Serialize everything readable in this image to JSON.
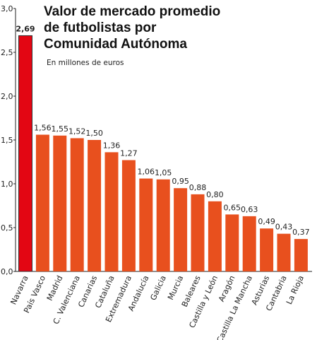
{
  "chart_data": {
    "type": "bar",
    "title": [
      "Valor de mercado promedio",
      "de futbolistas por",
      "Comunidad Autónoma"
    ],
    "subtitle": "En millones de euros",
    "categories": [
      "Navarra",
      "País Vasco",
      "Madrid",
      "C. Valenciana",
      "Canarias",
      "Cataluña",
      "Extremadura",
      "Andalucía",
      "Galicia",
      "Murcia",
      "Baleares",
      "Castilla y León",
      "Aragón",
      "Castilla La Mancha",
      "Asturias",
      "Cantabria",
      "La Rioja"
    ],
    "values": [
      2.69,
      1.56,
      1.55,
      1.52,
      1.5,
      1.36,
      1.27,
      1.06,
      1.05,
      0.95,
      0.88,
      0.8,
      0.65,
      0.63,
      0.49,
      0.43,
      0.37
    ],
    "value_labels": [
      "2,69",
      "1,56",
      "1,55",
      "1,52",
      "1,50",
      "1,36",
      "1,27",
      "1,06",
      "1,05",
      "0,95",
      "0,88",
      "0,80",
      "0,65",
      "0,63",
      "0,49",
      "0,43",
      "0,37"
    ],
    "colors": [
      "#e30613",
      "#e8501e",
      "#e8501e",
      "#e8501e",
      "#e8501e",
      "#e8501e",
      "#e8501e",
      "#e8501e",
      "#e8501e",
      "#e8501e",
      "#e8501e",
      "#e8501e",
      "#e8501e",
      "#e8501e",
      "#e8501e",
      "#e8501e",
      "#e8501e"
    ],
    "ylim": [
      0,
      3
    ],
    "yticks": [
      {
        "value": 0,
        "label": "0,0"
      },
      {
        "value": 0.5,
        "label": "0,5"
      },
      {
        "value": 1,
        "label": "1,0"
      },
      {
        "value": 1.5,
        "label": "1,5"
      },
      {
        "value": 2,
        "label": "2,0"
      },
      {
        "value": 2.5,
        "label": "2,5"
      },
      {
        "value": 3,
        "label": "3,0"
      }
    ],
    "grid": false
  }
}
